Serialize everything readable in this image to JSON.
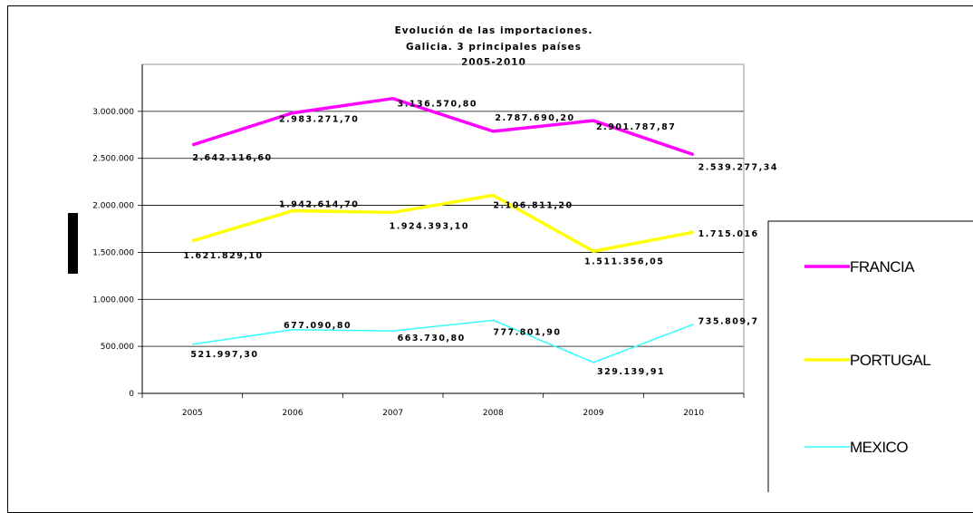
{
  "chart_data": {
    "type": "line",
    "title": [
      "Evolución de las importaciones.",
      "Galicia. 3 principales países",
      "2005-2010"
    ],
    "categories": [
      "2005",
      "2006",
      "2007",
      "2008",
      "2009",
      "2010"
    ],
    "ylim": [
      0,
      3500000
    ],
    "y_ticks": [
      0,
      500000,
      1000000,
      1500000,
      2000000,
      2500000,
      3000000
    ],
    "y_tick_labels": [
      "0",
      "500.000",
      "1.000.000",
      "1.500.000",
      "2.000.000",
      "2.500.000",
      "3.000.000"
    ],
    "grid": true,
    "legend_position": "right",
    "series": [
      {
        "name": "FRANCIA",
        "color": "#ff00ff",
        "values": [
          2642116.6,
          2983271.7,
          3136570.8,
          2787690.2,
          2901787.87,
          2539277.34
        ],
        "labels": [
          "2.642.116,60",
          "2.983.271,70",
          "3.136.570,80",
          "2.787.690,20",
          "2.901.787,87",
          "2.539.277,34"
        ]
      },
      {
        "name": "PORTUGAL",
        "color": "#ffff00",
        "values": [
          1621829.1,
          1942614.7,
          1924393.1,
          2106811.2,
          1511356.05,
          1715016
        ],
        "labels": [
          "1.621.829,10",
          "1.942.614,70",
          "1.924.393,10",
          "2.106.811,20",
          "1.511.356,05",
          "1.715.016"
        ]
      },
      {
        "name": "MEXICO",
        "color": "#33ffff",
        "values": [
          521997.3,
          677090.8,
          663730.8,
          777801.9,
          329139.91,
          735809.7
        ],
        "labels": [
          "521.997,30",
          "677.090,80",
          "663.730,80",
          "777.801,90",
          "329.139,91",
          "735.809,7"
        ]
      }
    ]
  }
}
